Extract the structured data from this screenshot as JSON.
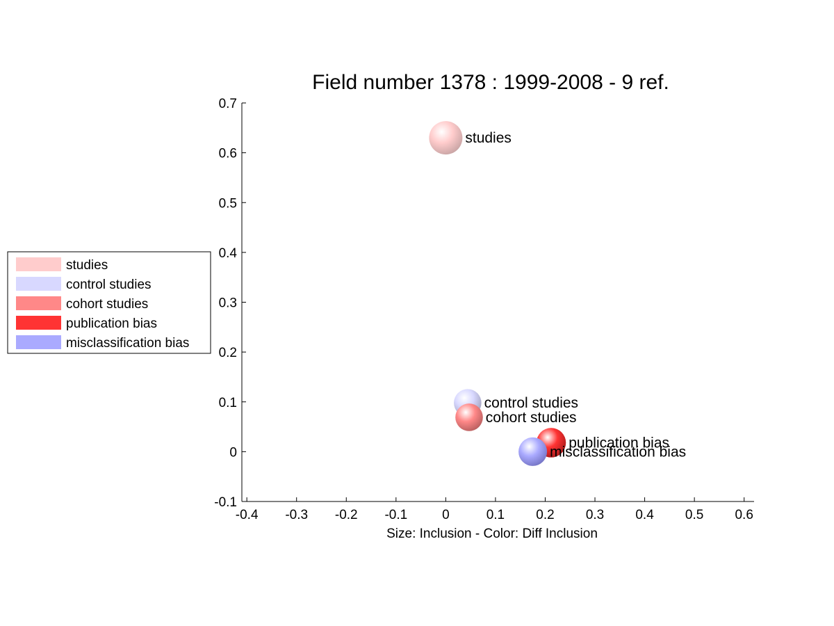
{
  "chart_data": {
    "type": "scatter",
    "title": "Field number 1378 : 1999-2008  - 9 ref.",
    "xlabel": "Size: Inclusion - Color: Diff Inclusion",
    "ylabel": "",
    "xlim": [
      -0.41,
      0.62
    ],
    "ylim": [
      -0.1,
      0.7
    ],
    "xticks": [
      -0.4,
      -0.3,
      -0.2,
      -0.1,
      0,
      0.1,
      0.2,
      0.3,
      0.4,
      0.5,
      0.6
    ],
    "xtick_labels": [
      "-0.4",
      "-0.3",
      "-0.2",
      "-0.1",
      "0",
      "0.1",
      "0.2",
      "0.3",
      "0.4",
      "0.5",
      "0.6"
    ],
    "yticks": [
      -0.1,
      0,
      0.1,
      0.2,
      0.3,
      0.4,
      0.5,
      0.6,
      0.7
    ],
    "ytick_labels": [
      "-0.1",
      "0",
      "0.1",
      "0.2",
      "0.3",
      "0.4",
      "0.5",
      "0.6",
      "0.7"
    ],
    "grid": false,
    "legend_position": "outside-left",
    "points": [
      {
        "label": "studies",
        "x": 0.0,
        "y": 0.63,
        "size": 1.0,
        "color": "#ffcccc",
        "shade": "#c4a1a1"
      },
      {
        "label": "control studies",
        "x": 0.044,
        "y": 0.098,
        "size": 0.7,
        "color": "#d8d8ff",
        "shade": "#9e9eb8"
      },
      {
        "label": "cohort studies",
        "x": 0.047,
        "y": 0.069,
        "size": 0.7,
        "color": "#ff8888",
        "shade": "#b35c5c"
      },
      {
        "label": "publication bias",
        "x": 0.212,
        "y": 0.018,
        "size": 0.8,
        "color": "#ff3333",
        "shade": "#a31818"
      },
      {
        "label": "misclassification bias",
        "x": 0.175,
        "y": 0.0,
        "size": 0.75,
        "color": "#aaaaff",
        "shade": "#7070c0"
      }
    ],
    "legend": [
      {
        "label": "studies",
        "color": "#ffcccc"
      },
      {
        "label": "control studies",
        "color": "#d8d8ff"
      },
      {
        "label": "cohort studies",
        "color": "#ff8888"
      },
      {
        "label": "publication bias",
        "color": "#ff3333"
      },
      {
        "label": "misclassification bias",
        "color": "#aaaaff"
      }
    ]
  }
}
